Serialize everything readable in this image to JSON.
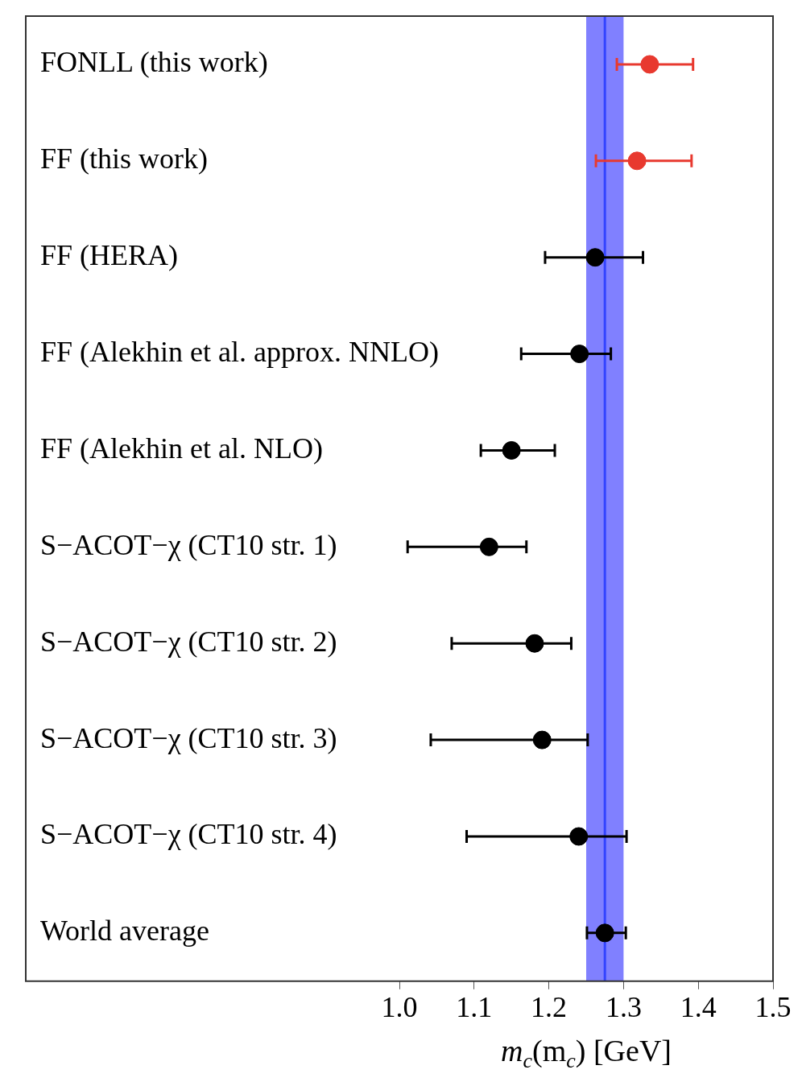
{
  "chart_data": {
    "type": "scatter",
    "orientation": "horizontal",
    "xlabel": "m$_{c}$(m$_{c}$) [GeV]",
    "categories": [
      "FONLL (this work)",
      "FF (this work)",
      "FF (HERA)",
      "FF (Alekhin et al. approx. NNLO)",
      "FF (Alekhin et al. NLO)",
      "S−ACOT−χ (CT10 str. 1)",
      "S−ACOT−χ (CT10 str. 2)",
      "S−ACOT−χ (CT10 str. 3)",
      "S−ACOT−χ (CT10 str. 4)",
      "World average"
    ],
    "series": [
      {
        "color": "#e8392f",
        "values": [
          1.335,
          1.318,
          null,
          null,
          null,
          null,
          null,
          null,
          null,
          null
        ],
        "errors": [
          [
            1.291,
            1.393
          ],
          [
            1.263,
            1.391
          ],
          null,
          null,
          null,
          null,
          null,
          null,
          null,
          null
        ]
      },
      {
        "color": "#000000",
        "values": [
          null,
          null,
          1.262,
          1.241,
          1.15,
          1.12,
          1.181,
          1.191,
          1.24,
          1.275
        ],
        "errors": [
          null,
          null,
          [
            1.195,
            1.326
          ],
          [
            1.163,
            1.283
          ],
          [
            1.109,
            1.208
          ],
          [
            1.011,
            1.17
          ],
          [
            1.07,
            1.23
          ],
          [
            1.042,
            1.252
          ],
          [
            1.09,
            1.304
          ],
          [
            1.251,
            1.303
          ]
        ]
      }
    ],
    "xlim": [
      0.5,
      1.5
    ],
    "xticks": [
      {
        "value": 1,
        "label": "1.0"
      },
      1.1,
      1.2,
      1.3,
      1.4,
      1.5
    ],
    "bands": [
      {
        "axis": "x",
        "from": 1.25,
        "to": 1.3,
        "color": "#8080ff"
      }
    ],
    "ref_lines": [
      {
        "axis": "x",
        "value": 1.275,
        "color": "#3344ff"
      }
    ],
    "marker": "circle",
    "grid": false,
    "legend": false
  }
}
